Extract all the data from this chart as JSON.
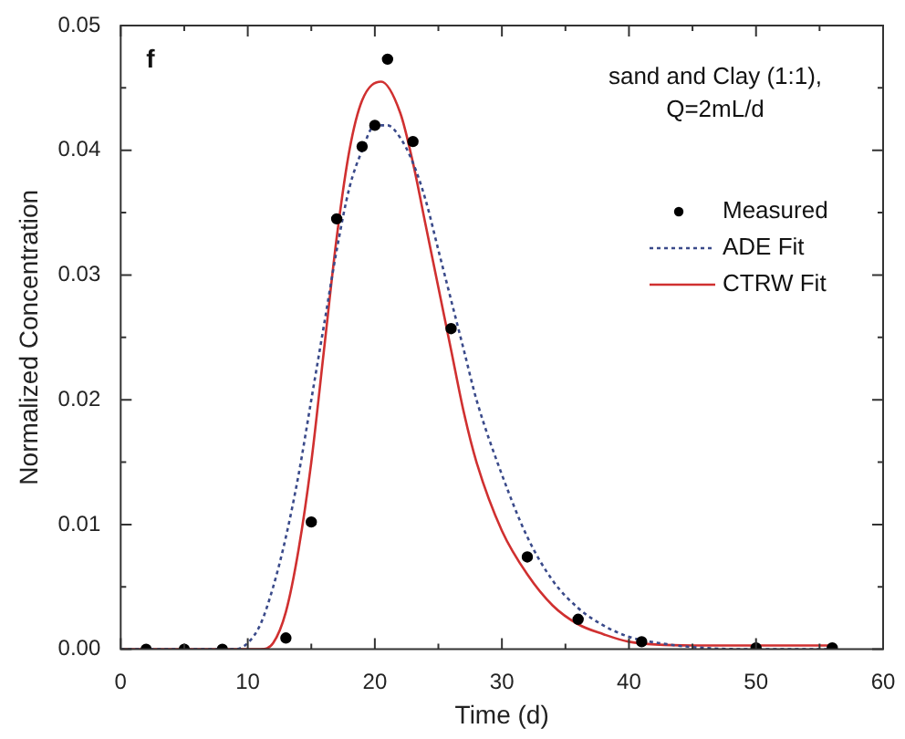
{
  "chart_data": {
    "type": "line",
    "xlabel": "Time (d)",
    "ylabel": "Normalized Concentration",
    "annotations": [
      "f",
      "sand and Clay (1:1),",
      "Q=2mL/d"
    ],
    "xlim": [
      0,
      60
    ],
    "xticks": [
      0,
      {
        "value": 5,
        "label": null
      },
      10,
      {
        "value": 15,
        "label": null
      },
      20,
      {
        "value": 25,
        "label": null
      },
      30,
      {
        "value": 35,
        "label": null
      },
      40,
      {
        "value": 45,
        "label": null
      },
      50,
      {
        "value": 55,
        "label": null
      },
      60
    ],
    "ylim": [
      0,
      0.05
    ],
    "yticks": [
      {
        "value": 0,
        "label": "0.00"
      },
      {
        "value": 0.005,
        "label": null
      },
      {
        "value": 0.01,
        "label": "0.01"
      },
      {
        "value": 0.015,
        "label": null
      },
      {
        "value": 0.02,
        "label": "0.02"
      },
      {
        "value": 0.025,
        "label": null
      },
      {
        "value": 0.03,
        "label": "0.03"
      },
      {
        "value": 0.035,
        "label": null
      },
      {
        "value": 0.04,
        "label": "0.04"
      },
      {
        "value": 0.045,
        "label": null
      },
      {
        "value": 0.05,
        "label": "0.05"
      }
    ],
    "grid": false,
    "legend": "top right",
    "series": [
      {
        "name": "Measured",
        "type": "scatter",
        "marker": "circle",
        "color": "#000000",
        "x": [
          2,
          5,
          8,
          13,
          15,
          17,
          19,
          20,
          21,
          23,
          26,
          32,
          36,
          41,
          50,
          56
        ],
        "values": [
          0,
          0,
          0,
          0.0009,
          0.0102,
          0.0345,
          0.0403,
          0.042,
          0.0473,
          0.0407,
          0.0257,
          0.0074,
          0.0024,
          0.0006,
          0.0001,
          0.0001
        ]
      },
      {
        "name": "ADE Fit",
        "line_style": "dotted",
        "marker": "none",
        "color": "#3a4a8a",
        "x": [
          0,
          9,
          10,
          11,
          12,
          13,
          14,
          15,
          16,
          17,
          18,
          19,
          20,
          21,
          22,
          23,
          24,
          25,
          26,
          27,
          28,
          30,
          32,
          34,
          36,
          38,
          40,
          43,
          46,
          50,
          56
        ],
        "values": [
          0,
          0,
          0.0005,
          0.002,
          0.005,
          0.009,
          0.014,
          0.02,
          0.026,
          0.032,
          0.037,
          0.04,
          0.042,
          0.042,
          0.041,
          0.039,
          0.036,
          0.032,
          0.028,
          0.024,
          0.02,
          0.014,
          0.009,
          0.0055,
          0.0033,
          0.0019,
          0.001,
          0.0004,
          0.0001,
          0,
          0
        ]
      },
      {
        "name": "CTRW Fit",
        "line_style": "solid",
        "marker": "none",
        "color": "#d03030",
        "x": [
          0,
          11,
          12,
          13,
          14,
          15,
          16,
          17,
          18,
          19,
          20.5,
          22,
          23,
          24,
          25,
          26,
          27,
          28,
          30,
          32,
          34,
          36,
          38,
          40,
          45,
          56
        ],
        "values": [
          0,
          0,
          0.0005,
          0.003,
          0.008,
          0.015,
          0.024,
          0.033,
          0.04,
          0.044,
          0.0455,
          0.043,
          0.039,
          0.034,
          0.029,
          0.024,
          0.019,
          0.015,
          0.0095,
          0.006,
          0.0035,
          0.002,
          0.0012,
          0.0006,
          0.0003,
          0.0003
        ]
      }
    ]
  }
}
